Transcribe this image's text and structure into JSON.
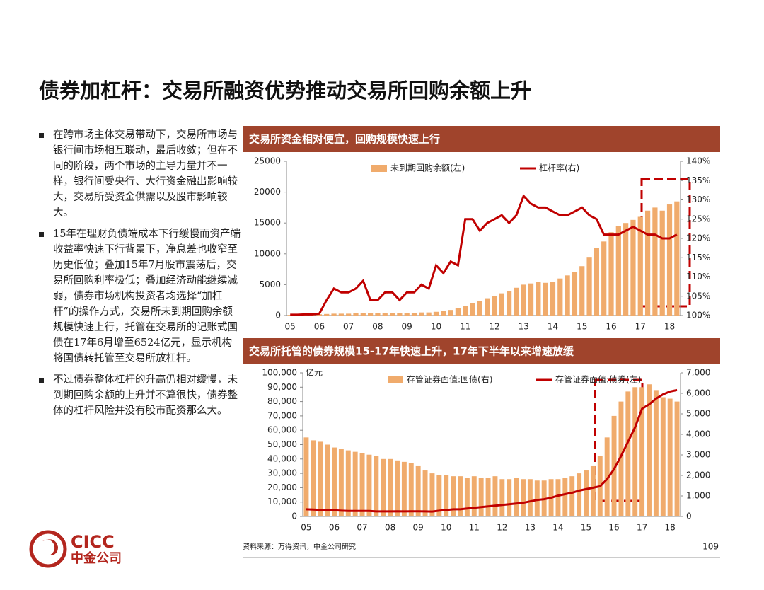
{
  "header": {
    "title": "债券加杠杆：交易所融资优势推动交易所回购余额上升"
  },
  "bullets": [
    "在跨市场主体交易带动下，交易所市场与银行间市场相互联动，最后收敛；但在不同的阶段，两个市场的主导力量并不一样，银行间受央行、大行资金融出影响较大，交易所受资金供需以及股市影响较大。",
    "15年在理财负债端成本下行缓慢而资产端收益率快速下行背景下，净息差也收窄至历史低位；叠加15年7月股市震荡后，交易所回购利率极低；叠加经济动能继续减弱，债券市场机构投资者均选择“加杠杆”的操作方式，交易所未到期回购余额规模快速上行，托管在交易所的记账式国债在17年6月增至6524亿元，显示机构将国债转托管至交易所放杠杆。",
    "不过债券整体杠杆的升高仍相对缓慢，未到期回购余额的上升并不算很快，债券整体的杠杆风险并没有股市配资那么大。"
  ],
  "footer": {
    "source": "资料来源：万得资讯，中金公司研究",
    "page": "109",
    "logo": "CICC",
    "logo_cn": "中金公司"
  },
  "chart_data": [
    {
      "type": "combo",
      "title": "交易所资金相对便宜，回购规模快速上行",
      "categories": [
        "05",
        null,
        null,
        null,
        "06",
        null,
        null,
        null,
        "07",
        null,
        null,
        null,
        "08",
        null,
        null,
        null,
        "09",
        null,
        null,
        null,
        "10",
        null,
        null,
        null,
        "11",
        null,
        null,
        null,
        "12",
        null,
        null,
        null,
        "13",
        null,
        null,
        null,
        "14",
        null,
        null,
        null,
        "15",
        null,
        null,
        null,
        "16",
        null,
        null,
        null,
        "17",
        null,
        null,
        null,
        "18",
        null
      ],
      "series": [
        {
          "name": "未到期回购余额(左)",
          "type": "bar",
          "color": "#f0ab6c",
          "values": [
            100,
            100,
            150,
            150,
            200,
            250,
            300,
            300,
            300,
            350,
            400,
            400,
            400,
            400,
            350,
            400,
            450,
            450,
            500,
            500,
            600,
            700,
            900,
            1200,
            1600,
            2000,
            2400,
            2800,
            3200,
            3600,
            4000,
            4500,
            5000,
            5200,
            5500,
            5300,
            5500,
            6000,
            6500,
            7000,
            8000,
            9500,
            11000,
            12000,
            13500,
            14500,
            15000,
            15500,
            16000,
            17000,
            17500,
            17000,
            18000,
            18500
          ]
        },
        {
          "name": "杠杆率(右)",
          "type": "line",
          "axis": "y2",
          "color": "#c00000",
          "values": [
            100.2,
            100.2,
            100.3,
            100.3,
            100.5,
            104,
            107,
            106,
            106,
            107,
            109,
            104,
            104,
            106,
            106,
            104,
            106,
            106,
            108,
            107,
            113,
            111,
            114,
            113,
            125,
            125,
            122,
            124,
            125,
            126,
            124,
            126,
            131,
            129,
            128,
            128,
            127,
            126,
            126,
            127,
            128,
            126,
            125,
            121,
            121,
            121,
            122,
            123,
            122,
            121,
            121,
            120,
            120,
            121
          ]
        }
      ],
      "ylim": [
        0,
        25000
      ],
      "yticks": [
        0,
        5000,
        10000,
        15000,
        20000,
        25000
      ],
      "y2lim": [
        100,
        140
      ],
      "y2ticks": [
        {
          "value": 100,
          "label": "100%"
        },
        {
          "value": 105,
          "label": "105%"
        },
        {
          "value": 110,
          "label": "110%"
        },
        {
          "value": 115,
          "label": "115%"
        },
        {
          "value": 120,
          "label": "120%"
        },
        {
          "value": 125,
          "label": "125%"
        },
        {
          "value": 130,
          "label": "130%"
        },
        {
          "value": 135,
          "label": "135%"
        },
        {
          "value": 140,
          "label": "140%"
        }
      ],
      "grid": false
    },
    {
      "type": "combo",
      "title": "交易所托管的债券规模15-17年快速上升，17年下半年以来增速放缓",
      "y_label": "亿元",
      "categories": [
        "05",
        null,
        null,
        null,
        "06",
        null,
        null,
        null,
        "07",
        null,
        null,
        null,
        "08",
        null,
        null,
        null,
        "09",
        null,
        null,
        null,
        "10",
        null,
        null,
        null,
        "11",
        null,
        null,
        null,
        "12",
        null,
        null,
        null,
        "13",
        null,
        null,
        null,
        "14",
        null,
        null,
        null,
        "15",
        null,
        null,
        null,
        "16",
        null,
        null,
        null,
        "17",
        null,
        null,
        null,
        "18",
        null
      ],
      "series": [
        {
          "name": "存管证券面值:国债(右)",
          "type": "bar",
          "axis": "y2",
          "color": "#f0ab6c",
          "values": [
            3850,
            3710,
            3640,
            3500,
            3360,
            3290,
            3220,
            3150,
            3080,
            3010,
            2940,
            2800,
            2800,
            2730,
            2660,
            2590,
            2450,
            2240,
            2100,
            2030,
            2030,
            1960,
            1960,
            1890,
            1960,
            1890,
            1890,
            1960,
            1820,
            1820,
            1890,
            1820,
            1820,
            1750,
            1750,
            1820,
            1820,
            1890,
            1960,
            2100,
            2240,
            2450,
            2940,
            3850,
            4900,
            5600,
            6090,
            6300,
            6300,
            6440,
            6160,
            5810,
            5740,
            5600
          ]
        },
        {
          "name": "存管证券面值:债券(左)",
          "type": "line",
          "color": "#c00000",
          "values": [
            5000,
            4800,
            4600,
            4500,
            4300,
            4000,
            3800,
            3800,
            3800,
            3800,
            3500,
            3500,
            3500,
            3600,
            3500,
            3600,
            3600,
            3500,
            3400,
            4000,
            4500,
            5000,
            5000,
            5500,
            6000,
            6500,
            7000,
            7500,
            8000,
            8500,
            9000,
            9500,
            10500,
            11500,
            12000,
            13000,
            14500,
            15500,
            16500,
            18000,
            19000,
            20000,
            21000,
            26000,
            33000,
            42000,
            52000,
            62000,
            75000,
            78000,
            82000,
            85000,
            87000,
            88000
          ]
        }
      ],
      "ylim": [
        0,
        100000
      ],
      "yticks": [
        0,
        {
          "value": 10000,
          "label": "10,000"
        },
        {
          "value": 20000,
          "label": "20,000"
        },
        {
          "value": 30000,
          "label": "30,000"
        },
        {
          "value": 40000,
          "label": "40,000"
        },
        {
          "value": 50000,
          "label": "50,000"
        },
        {
          "value": 60000,
          "label": "60,000"
        },
        {
          "value": 70000,
          "label": "70,000"
        },
        {
          "value": 80000,
          "label": "80,000"
        },
        {
          "value": 90000,
          "label": "90,000"
        },
        {
          "value": 100000,
          "label": "100,000"
        }
      ],
      "y2lim": [
        0,
        7000
      ],
      "y2ticks": [
        0,
        {
          "value": 1000,
          "label": "1,000"
        },
        {
          "value": 2000,
          "label": "2,000"
        },
        {
          "value": 3000,
          "label": "3,000"
        },
        {
          "value": 4000,
          "label": "4,000"
        },
        {
          "value": 5000,
          "label": "5,000"
        },
        {
          "value": 6000,
          "label": "6,000"
        },
        {
          "value": 7000,
          "label": "7,000"
        }
      ],
      "grid": false
    }
  ]
}
